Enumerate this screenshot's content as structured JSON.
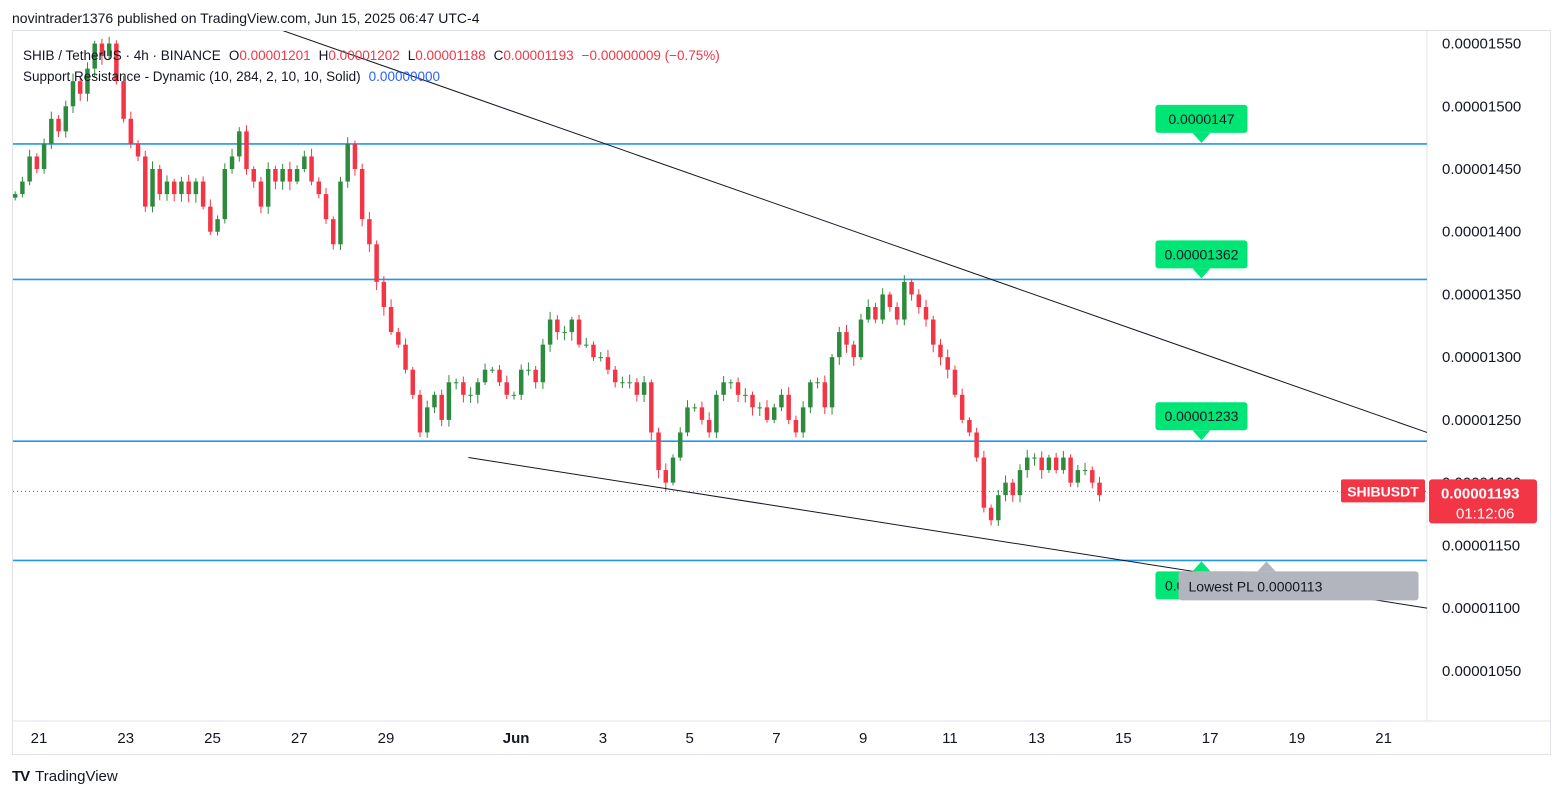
{
  "publisher": "novintrader1376 published on TradingView.com, Jun 15, 2025 06:47 UTC-4",
  "legend": {
    "symbol": "SHIB / TetherUS · 4h · BINANCE",
    "o_label": "O",
    "o_value": "0.00001201",
    "h_label": "H",
    "h_value": "0.00001202",
    "l_label": "L",
    "l_value": "0.00001188",
    "c_label": "C",
    "c_value": "0.00001193",
    "change": "−0.00000009 (−0.75%)",
    "indicator": "Support Resistance - Dynamic (10, 284, 2, 10, 10, Solid)",
    "indicator_value": "0.00000000"
  },
  "footer": {
    "brand": "TradingView",
    "logo": "TV"
  },
  "colors": {
    "up": "#26a69a",
    "up_dark": "#2e8b3e",
    "down": "#f23645",
    "level": "#2196f3",
    "label_green": "#00e676",
    "trend": "#131722"
  },
  "chart_data": {
    "type": "candlestick",
    "symbol": "SHIBUSDT",
    "interval": "4h",
    "ylim": [
      1.01e-05,
      1.56e-05
    ],
    "y_ticks": [
      "0.00001550",
      "0.00001500",
      "0.00001450",
      "0.00001400",
      "0.00001350",
      "0.00001300",
      "0.00001250",
      "0.00001200",
      "0.00001150",
      "0.00001100",
      "0.00001050"
    ],
    "y_tick_values": [
      1.55e-05,
      1.5e-05,
      1.45e-05,
      1.4e-05,
      1.35e-05,
      1.3e-05,
      1.25e-05,
      1.2e-05,
      1.15e-05,
      1.1e-05,
      1.05e-05
    ],
    "x_ticks": [
      "21",
      "23",
      "25",
      "27",
      "29",
      "Jun",
      "3",
      "5",
      "7",
      "9",
      "11",
      "13",
      "15",
      "17",
      "19",
      "21"
    ],
    "x_tick_days": [
      21,
      23,
      25,
      27,
      29,
      32,
      34,
      36,
      38,
      40,
      42,
      44,
      46,
      48,
      50,
      52
    ],
    "x_range_days": [
      20.4,
      53.0
    ],
    "bars_per_day": 6,
    "first_bar_day": 20.45,
    "closes": [
      1.43e-05,
      1.44e-05,
      1.46e-05,
      1.45e-05,
      1.47e-05,
      1.49e-05,
      1.48e-05,
      1.5e-05,
      1.52e-05,
      1.51e-05,
      1.53e-05,
      1.55e-05,
      1.54e-05,
      1.55e-05,
      1.52e-05,
      1.49e-05,
      1.47e-05,
      1.46e-05,
      1.42e-05,
      1.45e-05,
      1.43e-05,
      1.44e-05,
      1.43e-05,
      1.44e-05,
      1.43e-05,
      1.44e-05,
      1.42e-05,
      1.4e-05,
      1.41e-05,
      1.45e-05,
      1.46e-05,
      1.48e-05,
      1.45e-05,
      1.44e-05,
      1.42e-05,
      1.45e-05,
      1.44e-05,
      1.45e-05,
      1.44e-05,
      1.45e-05,
      1.46e-05,
      1.44e-05,
      1.43e-05,
      1.41e-05,
      1.39e-05,
      1.44e-05,
      1.47e-05,
      1.45e-05,
      1.41e-05,
      1.39e-05,
      1.36e-05,
      1.34e-05,
      1.32e-05,
      1.31e-05,
      1.29e-05,
      1.27e-05,
      1.24e-05,
      1.26e-05,
      1.27e-05,
      1.25e-05,
      1.28e-05,
      1.28e-05,
      1.27e-05,
      1.27e-05,
      1.28e-05,
      1.29e-05,
      1.29e-05,
      1.28e-05,
      1.27e-05,
      1.27e-05,
      1.29e-05,
      1.29e-05,
      1.28e-05,
      1.31e-05,
      1.33e-05,
      1.32e-05,
      1.32e-05,
      1.33e-05,
      1.31e-05,
      1.31e-05,
      1.3e-05,
      1.3e-05,
      1.29e-05,
      1.28e-05,
      1.28e-05,
      1.28e-05,
      1.27e-05,
      1.28e-05,
      1.24e-05,
      1.21e-05,
      1.2e-05,
      1.22e-05,
      1.24e-05,
      1.26e-05,
      1.26e-05,
      1.25e-05,
      1.24e-05,
      1.27e-05,
      1.28e-05,
      1.28e-05,
      1.27e-05,
      1.27e-05,
      1.26e-05,
      1.26e-05,
      1.25e-05,
      1.26e-05,
      1.27e-05,
      1.25e-05,
      1.24e-05,
      1.26e-05,
      1.28e-05,
      1.28e-05,
      1.26e-05,
      1.3e-05,
      1.32e-05,
      1.31e-05,
      1.3e-05,
      1.33e-05,
      1.34e-05,
      1.33e-05,
      1.35e-05,
      1.34e-05,
      1.33e-05,
      1.36e-05,
      1.35e-05,
      1.34e-05,
      1.33e-05,
      1.31e-05,
      1.3e-05,
      1.29e-05,
      1.27e-05,
      1.25e-05,
      1.24e-05,
      1.22e-05,
      1.18e-05,
      1.17e-05,
      1.19e-05,
      1.2e-05,
      1.19e-05,
      1.21e-05,
      1.22e-05,
      1.22e-05,
      1.21e-05,
      1.22e-05,
      1.21e-05,
      1.22e-05,
      1.2e-05,
      1.21e-05,
      1.21e-05,
      1.2e-05,
      1.19e-05
    ],
    "levels": [
      {
        "value": 1.47e-05,
        "label": "0.0000147"
      },
      {
        "value": 1.362e-05,
        "label": "0.00001362"
      },
      {
        "value": 1.233e-05,
        "label": "0.00001233"
      },
      {
        "value": 1.138e-05,
        "label": "0.00001138"
      }
    ],
    "trendlines": [
      {
        "from": [
          25.0,
          1.58e-05
        ],
        "to": [
          53.0,
          1.24e-05
        ]
      },
      {
        "from": [
          30.9,
          1.22e-05
        ],
        "to": [
          53.0,
          1.1e-05
        ]
      }
    ],
    "lowest_pl": {
      "label": "Lowest PL 0.0000113",
      "day": 49.3
    },
    "last_price": {
      "symbol": "SHIBUSDT",
      "value": 1.193e-05,
      "label": "0.00001193",
      "countdown": "01:12:06"
    }
  }
}
